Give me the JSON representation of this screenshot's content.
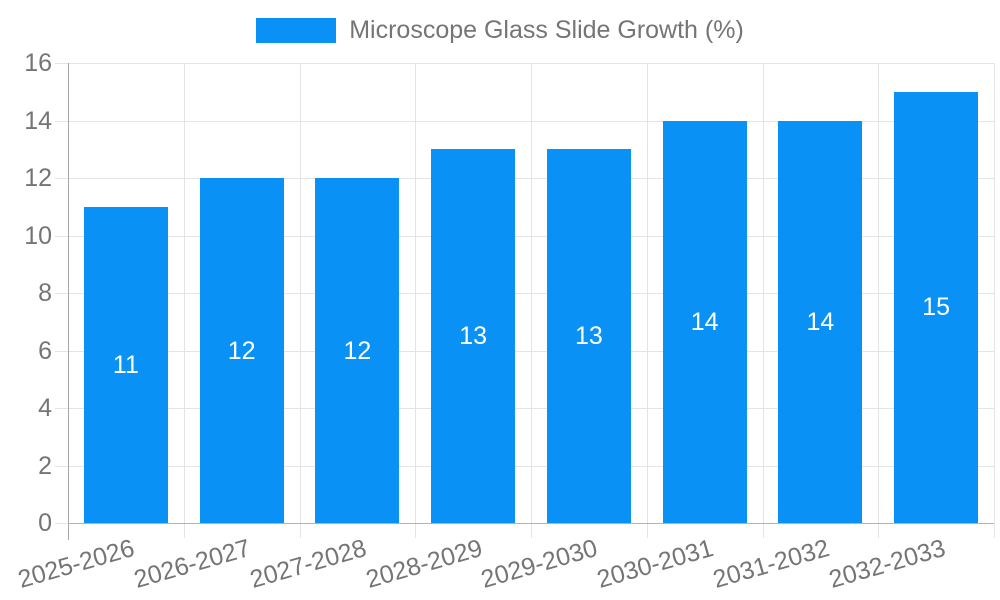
{
  "legend": {
    "label": "Microscope Glass Slide Growth (%)"
  },
  "chart_data": {
    "type": "bar",
    "title": "Microscope Glass Slide Growth (%)",
    "categories": [
      "2025-2026",
      "2026-2027",
      "2027-2028",
      "2028-2029",
      "2029-2030",
      "2030-2031",
      "2031-2032",
      "2032-2033"
    ],
    "values": [
      11,
      12,
      12,
      13,
      13,
      14,
      14,
      15
    ],
    "bar_labels": [
      11,
      12,
      12,
      13,
      13,
      14,
      14,
      15
    ],
    "y_ticks": [
      0,
      2,
      4,
      6,
      8,
      10,
      12,
      14,
      16
    ],
    "ylim": [
      0,
      16
    ],
    "xlabel": "",
    "ylabel": "",
    "grid": true,
    "legend_position": "top",
    "colors": {
      "bar": "#0991f6",
      "grid": "#e4e4e4",
      "y_axis_line": "#a6a6a6",
      "x_axis_line": "#b3b3b3",
      "tick_text": "#757575",
      "bar_label_text": "#ffffff",
      "background": "#ffffff"
    }
  }
}
